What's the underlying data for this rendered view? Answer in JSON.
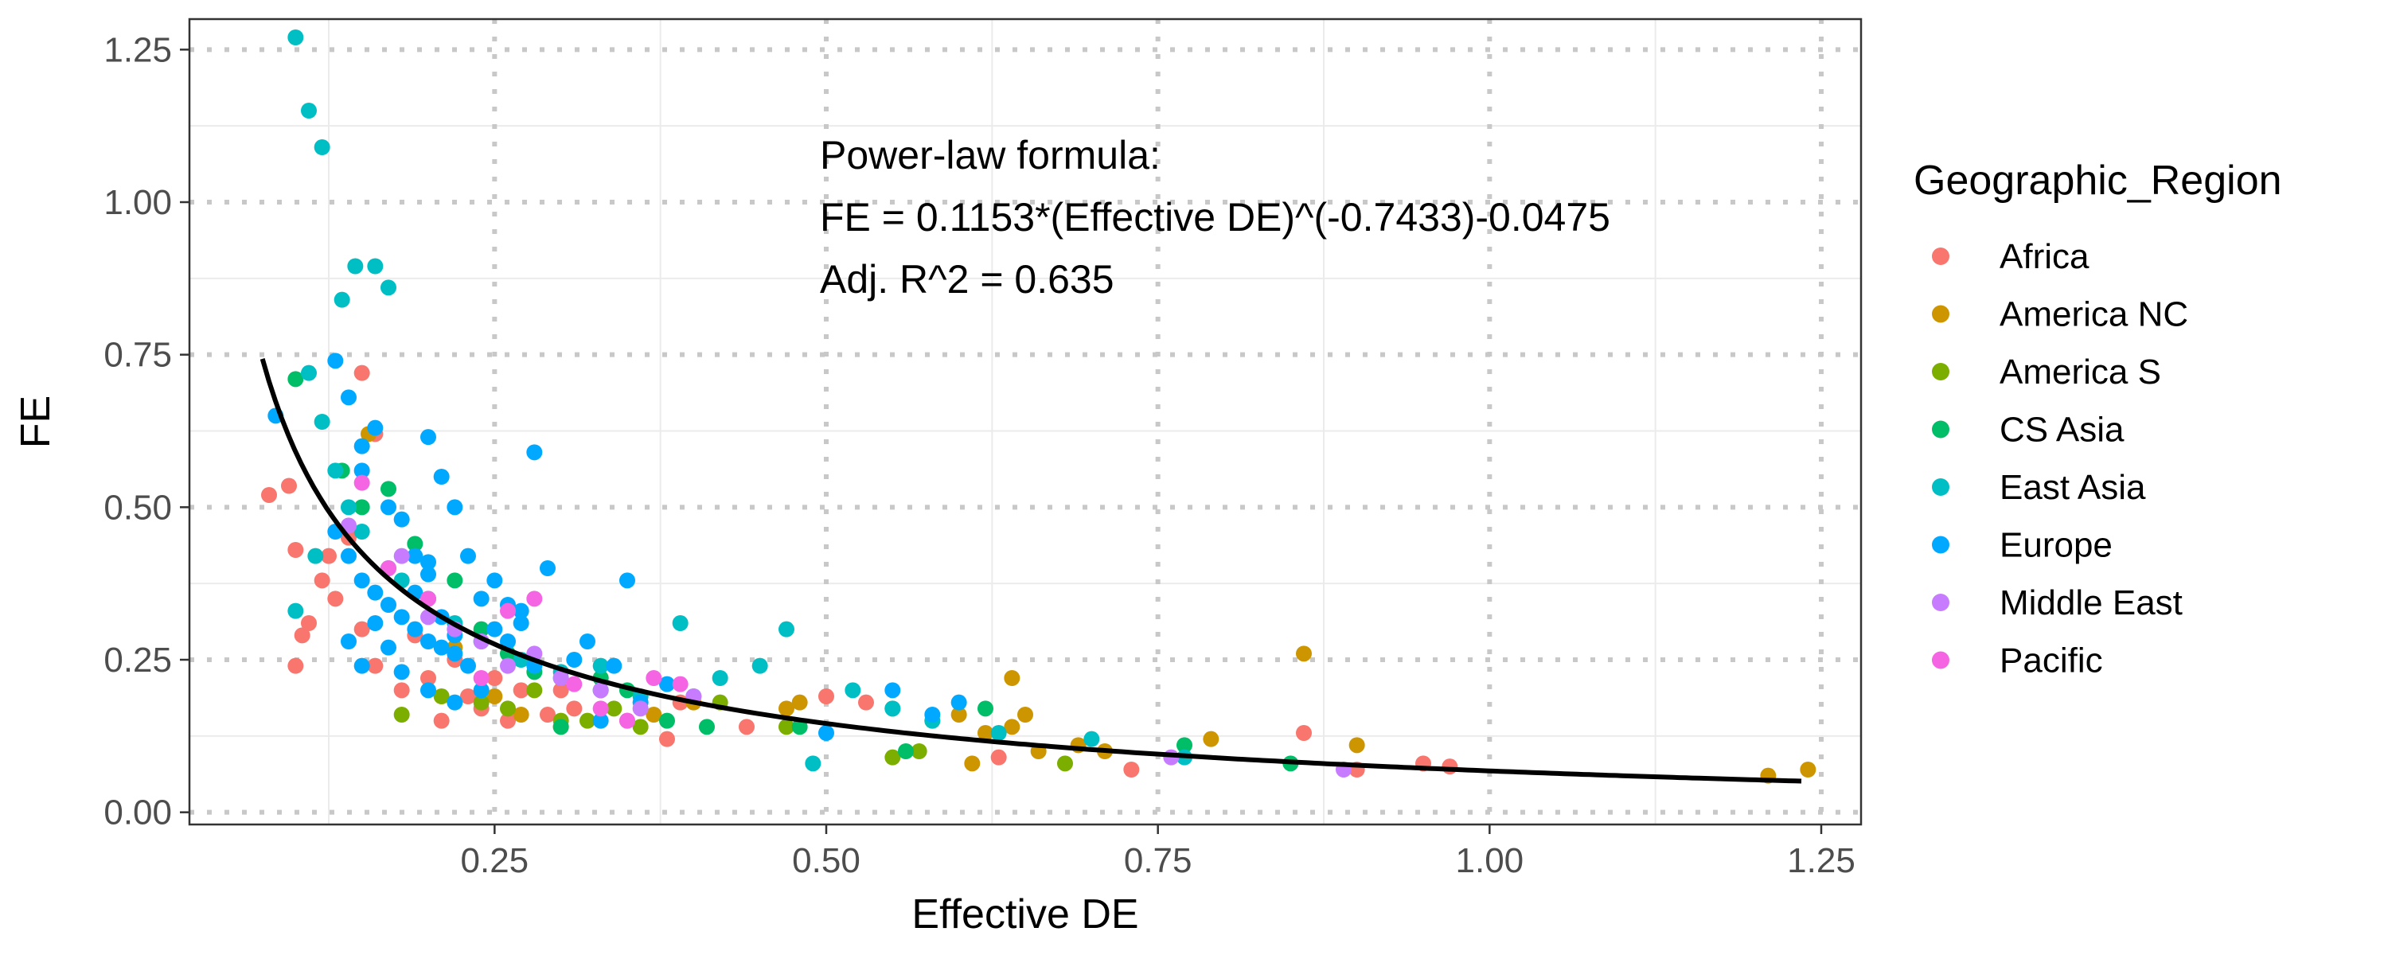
{
  "chart_data": {
    "type": "scatter",
    "xlabel": "Effective DE",
    "ylabel": "FE",
    "xlim": [
      0.02,
      1.28
    ],
    "ylim": [
      -0.02,
      1.3
    ],
    "x_ticks": [
      0.25,
      0.5,
      0.75,
      1.0,
      1.25
    ],
    "x_tick_labels": [
      "0.25",
      "0.50",
      "0.75",
      "1.00",
      "1.25"
    ],
    "y_ticks": [
      0.0,
      0.25,
      0.5,
      0.75,
      1.0,
      1.25
    ],
    "y_tick_labels": [
      "0.00",
      "0.25",
      "0.50",
      "0.75",
      "1.00",
      "1.25"
    ],
    "grid": true,
    "legend": {
      "title": "Geographic_Region",
      "position": "right"
    },
    "annotations": [
      "Power-law formula:",
      "FE = 0.1153*(Effective DE)^(-0.7433)-0.0475",
      "Adj. R^2 = 0.635"
    ],
    "fit": {
      "a": 0.1153,
      "b": -0.7433,
      "c": -0.0475,
      "x_range": [
        0.075,
        1.235
      ],
      "color": "#000000"
    },
    "series": [
      {
        "name": "Africa",
        "color": "#F8766D",
        "points": [
          [
            0.08,
            0.52
          ],
          [
            0.095,
            0.535
          ],
          [
            0.1,
            0.43
          ],
          [
            0.1,
            0.24
          ],
          [
            0.105,
            0.29
          ],
          [
            0.11,
            0.31
          ],
          [
            0.12,
            0.38
          ],
          [
            0.125,
            0.42
          ],
          [
            0.13,
            0.35
          ],
          [
            0.14,
            0.45
          ],
          [
            0.15,
            0.72
          ],
          [
            0.15,
            0.3
          ],
          [
            0.16,
            0.62
          ],
          [
            0.16,
            0.24
          ],
          [
            0.18,
            0.2
          ],
          [
            0.19,
            0.29
          ],
          [
            0.2,
            0.22
          ],
          [
            0.21,
            0.15
          ],
          [
            0.22,
            0.25
          ],
          [
            0.23,
            0.19
          ],
          [
            0.24,
            0.17
          ],
          [
            0.25,
            0.22
          ],
          [
            0.26,
            0.15
          ],
          [
            0.27,
            0.2
          ],
          [
            0.29,
            0.16
          ],
          [
            0.3,
            0.2
          ],
          [
            0.31,
            0.17
          ],
          [
            0.33,
            0.22
          ],
          [
            0.35,
            0.15
          ],
          [
            0.38,
            0.12
          ],
          [
            0.39,
            0.18
          ],
          [
            0.44,
            0.14
          ],
          [
            0.5,
            0.19
          ],
          [
            0.53,
            0.18
          ],
          [
            0.63,
            0.09
          ],
          [
            0.73,
            0.07
          ],
          [
            0.86,
            0.13
          ],
          [
            0.9,
            0.07
          ],
          [
            0.95,
            0.08
          ],
          [
            0.97,
            0.075
          ]
        ]
      },
      {
        "name": "America NC",
        "color": "#CD9600",
        "points": [
          [
            0.155,
            0.62
          ],
          [
            0.22,
            0.27
          ],
          [
            0.25,
            0.19
          ],
          [
            0.27,
            0.16
          ],
          [
            0.3,
            0.14
          ],
          [
            0.33,
            0.2
          ],
          [
            0.37,
            0.16
          ],
          [
            0.4,
            0.18
          ],
          [
            0.47,
            0.17
          ],
          [
            0.48,
            0.18
          ],
          [
            0.58,
            0.15
          ],
          [
            0.6,
            0.16
          ],
          [
            0.61,
            0.08
          ],
          [
            0.62,
            0.13
          ],
          [
            0.64,
            0.22
          ],
          [
            0.64,
            0.14
          ],
          [
            0.65,
            0.16
          ],
          [
            0.66,
            0.1
          ],
          [
            0.69,
            0.11
          ],
          [
            0.71,
            0.1
          ],
          [
            0.79,
            0.12
          ],
          [
            0.86,
            0.26
          ],
          [
            0.9,
            0.11
          ],
          [
            1.21,
            0.06
          ],
          [
            1.24,
            0.07
          ]
        ]
      },
      {
        "name": "America S",
        "color": "#7CAE00",
        "points": [
          [
            0.18,
            0.16
          ],
          [
            0.21,
            0.19
          ],
          [
            0.24,
            0.18
          ],
          [
            0.26,
            0.17
          ],
          [
            0.28,
            0.2
          ],
          [
            0.3,
            0.15
          ],
          [
            0.32,
            0.15
          ],
          [
            0.34,
            0.17
          ],
          [
            0.36,
            0.14
          ],
          [
            0.42,
            0.18
          ],
          [
            0.47,
            0.14
          ],
          [
            0.55,
            0.09
          ],
          [
            0.57,
            0.1
          ],
          [
            0.68,
            0.08
          ]
        ]
      },
      {
        "name": "CS Asia",
        "color": "#00BE67",
        "points": [
          [
            0.1,
            0.71
          ],
          [
            0.135,
            0.56
          ],
          [
            0.15,
            0.5
          ],
          [
            0.17,
            0.53
          ],
          [
            0.19,
            0.44
          ],
          [
            0.22,
            0.38
          ],
          [
            0.24,
            0.3
          ],
          [
            0.26,
            0.26
          ],
          [
            0.28,
            0.23
          ],
          [
            0.3,
            0.14
          ],
          [
            0.33,
            0.22
          ],
          [
            0.35,
            0.2
          ],
          [
            0.38,
            0.15
          ],
          [
            0.41,
            0.14
          ],
          [
            0.48,
            0.14
          ],
          [
            0.55,
            0.17
          ],
          [
            0.56,
            0.1
          ],
          [
            0.62,
            0.17
          ],
          [
            0.77,
            0.11
          ],
          [
            0.85,
            0.08
          ]
        ]
      },
      {
        "name": "East Asia",
        "color": "#00BFC4",
        "points": [
          [
            0.1,
            1.27
          ],
          [
            0.11,
            1.15
          ],
          [
            0.12,
            1.09
          ],
          [
            0.145,
            0.895
          ],
          [
            0.16,
            0.895
          ],
          [
            0.17,
            0.86
          ],
          [
            0.135,
            0.84
          ],
          [
            0.11,
            0.72
          ],
          [
            0.12,
            0.64
          ],
          [
            0.13,
            0.56
          ],
          [
            0.14,
            0.5
          ],
          [
            0.1,
            0.33
          ],
          [
            0.115,
            0.42
          ],
          [
            0.15,
            0.46
          ],
          [
            0.17,
            0.4
          ],
          [
            0.18,
            0.38
          ],
          [
            0.2,
            0.35
          ],
          [
            0.22,
            0.31
          ],
          [
            0.24,
            0.28
          ],
          [
            0.27,
            0.25
          ],
          [
            0.3,
            0.23
          ],
          [
            0.33,
            0.24
          ],
          [
            0.36,
            0.19
          ],
          [
            0.39,
            0.31
          ],
          [
            0.42,
            0.22
          ],
          [
            0.45,
            0.24
          ],
          [
            0.47,
            0.3
          ],
          [
            0.49,
            0.08
          ],
          [
            0.52,
            0.2
          ],
          [
            0.55,
            0.17
          ],
          [
            0.58,
            0.15
          ],
          [
            0.63,
            0.13
          ],
          [
            0.7,
            0.12
          ],
          [
            0.77,
            0.09
          ]
        ]
      },
      {
        "name": "Europe",
        "color": "#00A9FF",
        "points": [
          [
            0.085,
            0.65
          ],
          [
            0.13,
            0.74
          ],
          [
            0.14,
            0.68
          ],
          [
            0.15,
            0.6
          ],
          [
            0.15,
            0.56
          ],
          [
            0.16,
            0.63
          ],
          [
            0.17,
            0.5
          ],
          [
            0.18,
            0.48
          ],
          [
            0.19,
            0.42
          ],
          [
            0.2,
            0.615
          ],
          [
            0.21,
            0.55
          ],
          [
            0.22,
            0.5
          ],
          [
            0.13,
            0.46
          ],
          [
            0.14,
            0.42
          ],
          [
            0.15,
            0.38
          ],
          [
            0.16,
            0.36
          ],
          [
            0.17,
            0.34
          ],
          [
            0.18,
            0.32
          ],
          [
            0.19,
            0.3
          ],
          [
            0.2,
            0.28
          ],
          [
            0.21,
            0.27
          ],
          [
            0.22,
            0.26
          ],
          [
            0.14,
            0.28
          ],
          [
            0.15,
            0.24
          ],
          [
            0.16,
            0.31
          ],
          [
            0.17,
            0.27
          ],
          [
            0.18,
            0.23
          ],
          [
            0.19,
            0.36
          ],
          [
            0.2,
            0.41
          ],
          [
            0.21,
            0.32
          ],
          [
            0.22,
            0.29
          ],
          [
            0.23,
            0.24
          ],
          [
            0.24,
            0.35
          ],
          [
            0.25,
            0.3
          ],
          [
            0.26,
            0.28
          ],
          [
            0.27,
            0.33
          ],
          [
            0.28,
            0.59
          ],
          [
            0.28,
            0.24
          ],
          [
            0.29,
            0.4
          ],
          [
            0.3,
            0.22
          ],
          [
            0.31,
            0.25
          ],
          [
            0.32,
            0.28
          ],
          [
            0.33,
            0.2
          ],
          [
            0.34,
            0.24
          ],
          [
            0.35,
            0.38
          ],
          [
            0.36,
            0.18
          ],
          [
            0.38,
            0.21
          ],
          [
            0.4,
            0.19
          ],
          [
            0.5,
            0.13
          ],
          [
            0.55,
            0.2
          ],
          [
            0.58,
            0.16
          ],
          [
            0.6,
            0.18
          ],
          [
            0.23,
            0.42
          ],
          [
            0.25,
            0.38
          ],
          [
            0.26,
            0.34
          ],
          [
            0.27,
            0.31
          ],
          [
            0.2,
            0.2
          ],
          [
            0.22,
            0.18
          ],
          [
            0.24,
            0.2
          ],
          [
            0.33,
            0.15
          ],
          [
            0.2,
            0.39
          ]
        ]
      },
      {
        "name": "Middle East",
        "color": "#C77CFF",
        "points": [
          [
            0.14,
            0.47
          ],
          [
            0.18,
            0.42
          ],
          [
            0.2,
            0.32
          ],
          [
            0.22,
            0.3
          ],
          [
            0.24,
            0.28
          ],
          [
            0.26,
            0.24
          ],
          [
            0.28,
            0.26
          ],
          [
            0.3,
            0.22
          ],
          [
            0.33,
            0.2
          ],
          [
            0.36,
            0.17
          ],
          [
            0.4,
            0.19
          ],
          [
            0.76,
            0.09
          ],
          [
            0.89,
            0.07
          ]
        ]
      },
      {
        "name": "Pacific",
        "color": "#F564E3",
        "points": [
          [
            0.15,
            0.54
          ],
          [
            0.17,
            0.4
          ],
          [
            0.2,
            0.35
          ],
          [
            0.24,
            0.22
          ],
          [
            0.26,
            0.33
          ],
          [
            0.28,
            0.35
          ],
          [
            0.31,
            0.21
          ],
          [
            0.33,
            0.17
          ],
          [
            0.35,
            0.15
          ],
          [
            0.37,
            0.22
          ],
          [
            0.39,
            0.21
          ]
        ]
      }
    ]
  }
}
